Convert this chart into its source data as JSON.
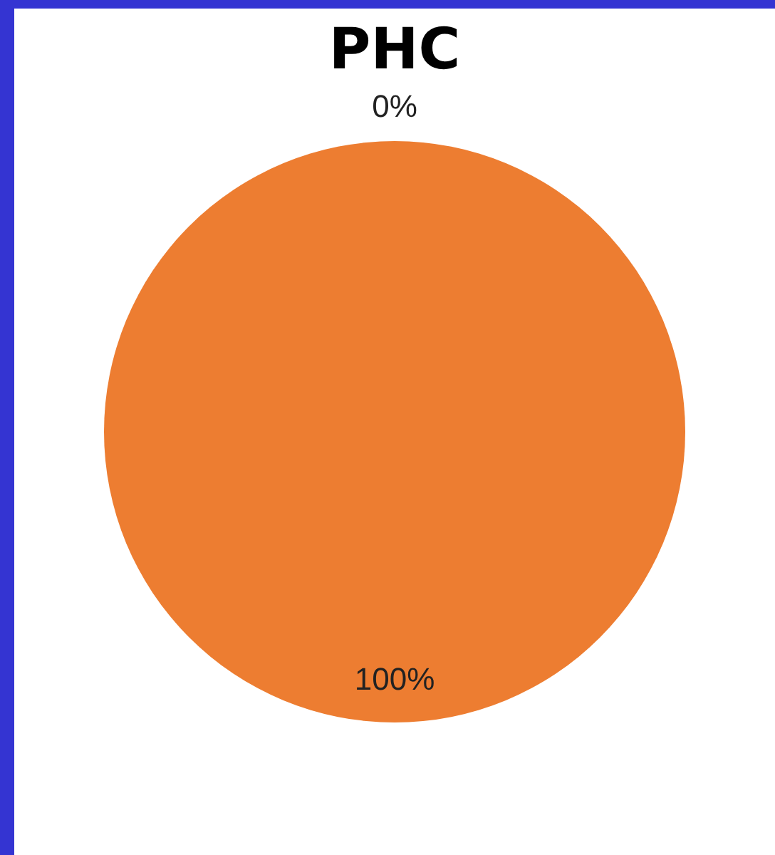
{
  "chart_data": {
    "type": "pie",
    "title": "PHC",
    "categories": [
      null,
      null
    ],
    "values": [
      0,
      100
    ],
    "colors": [
      "#4472c4",
      "#ed7d31"
    ],
    "value_labels": [
      "0%",
      "100%"
    ],
    "legend": false
  }
}
